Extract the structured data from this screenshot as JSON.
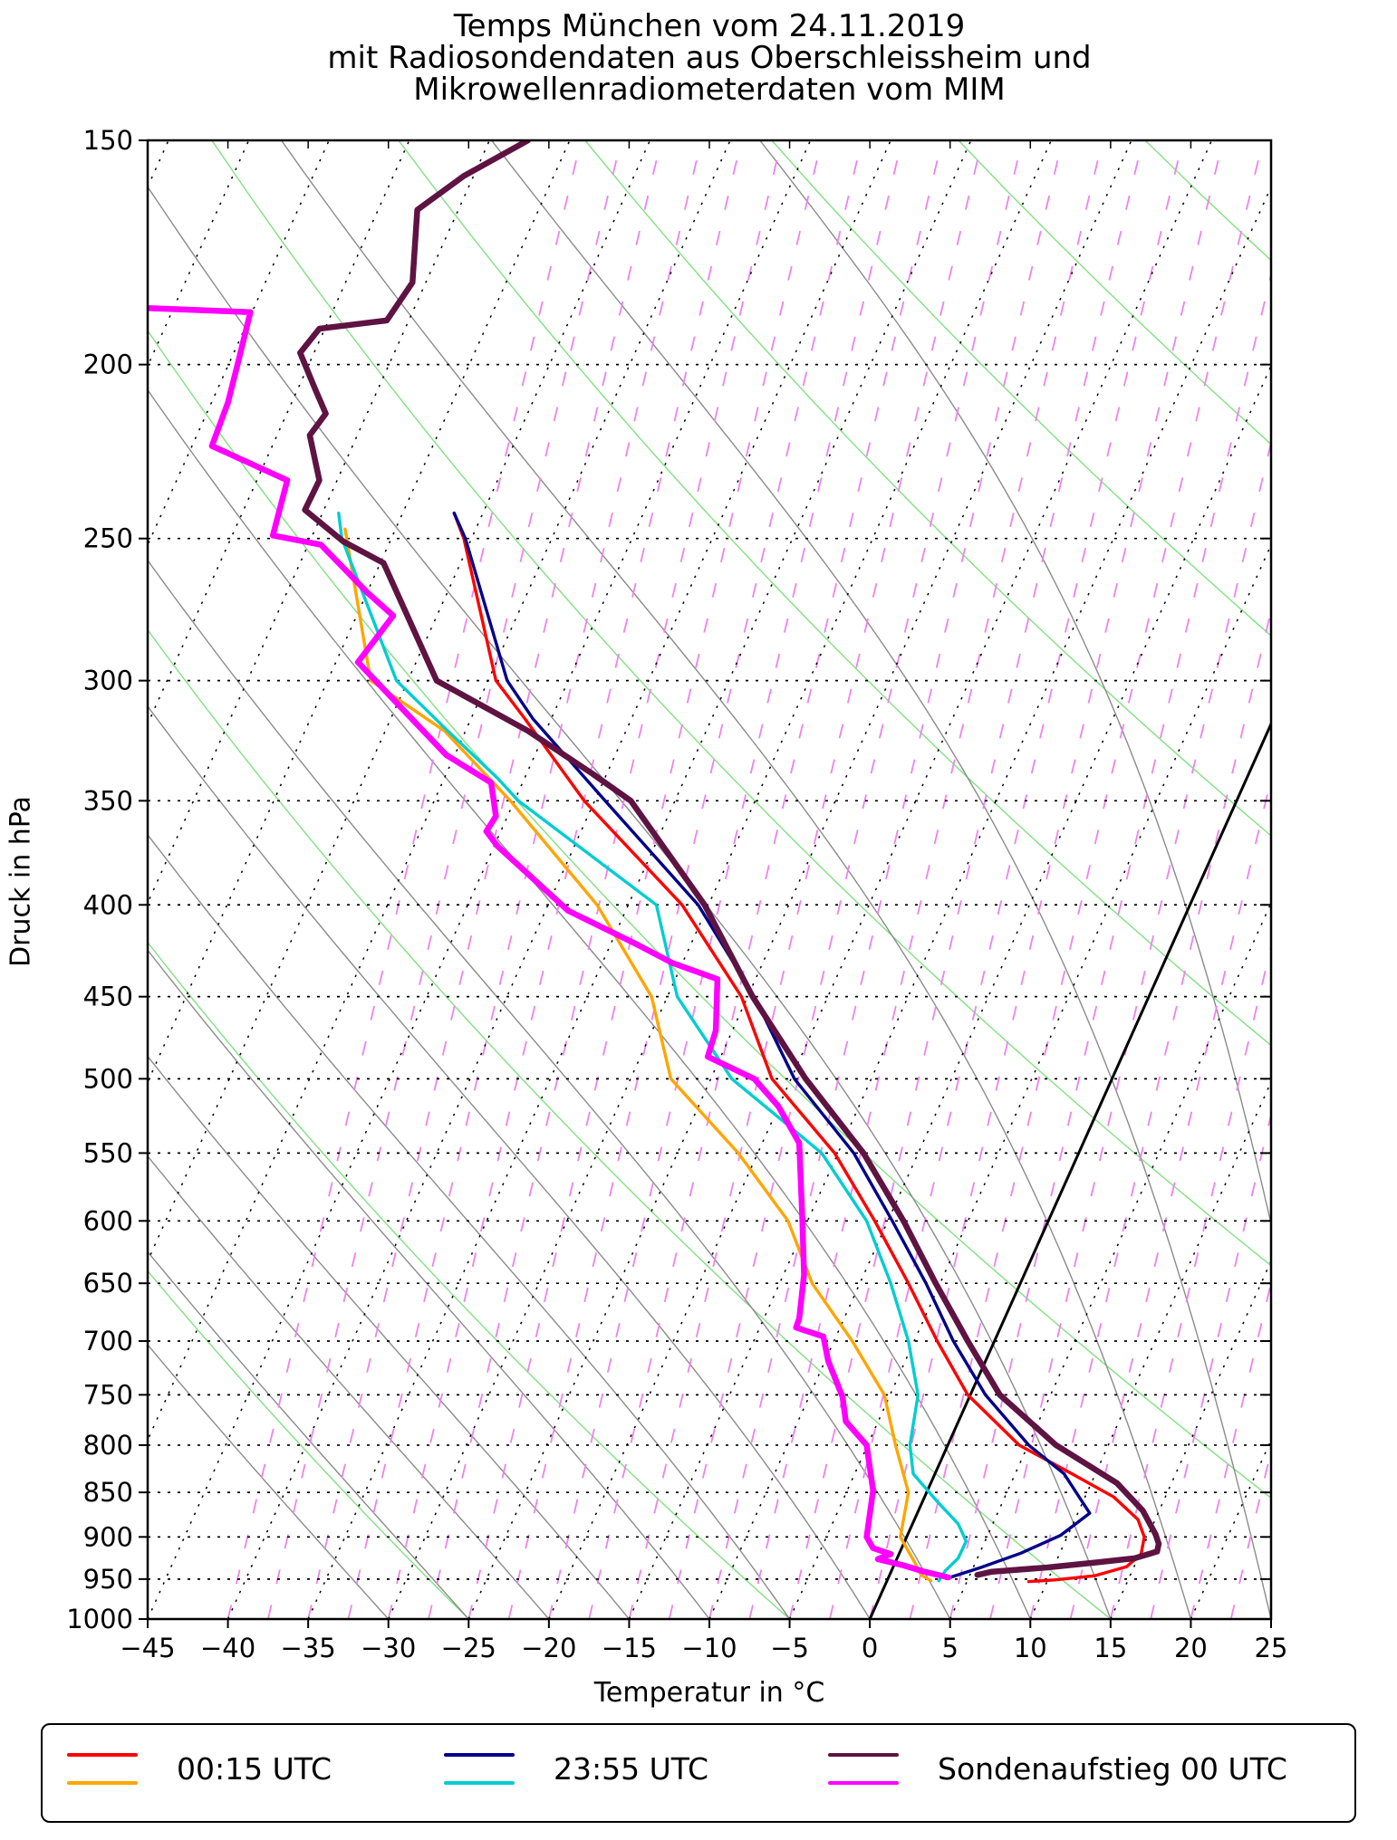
{
  "title": {
    "line1": "Temps München vom 24.11.2019",
    "line2": "mit Radiosondendaten aus Oberschleissheim und",
    "line3": "Mikrowellenradiometerdaten vom MIM"
  },
  "axes": {
    "x_label": "Temperatur in °C",
    "y_label": "Druck in hPa"
  },
  "legend": {
    "entries": [
      {
        "label": "00:15 UTC",
        "line_colors": [
          "#fe0000",
          "#ffa500"
        ]
      },
      {
        "label": "23:55 UTC",
        "line_colors": [
          "#00008b",
          "#00cdd0"
        ]
      },
      {
        "label": "Sondenaufstieg 00 UTC",
        "line_colors": [
          "#5e1342",
          "#ff00ff"
        ]
      }
    ]
  },
  "chart_data": {
    "type": "line",
    "projection": "skew-t-log-p",
    "note": "Skew-T log-p Diagramm. Series-Punkte sind [Druck hPa, Position auf der unteren Temperaturachse in °C] (schief projizierte Koordinaten). Isothermen sind um skew_shift °C über die Diagrammhöhe geneigt.",
    "title": "Temps München vom 24.11.2019 mit Radiosondendaten aus Oberschleissheim und Mikrowellenradiometerdaten vom MIM",
    "xlabel": "Temperatur in °C",
    "ylabel": "Druck in hPa",
    "x_range": [
      -45,
      25
    ],
    "p_range": [
      150,
      1000
    ],
    "x_ticks": [
      -45,
      -40,
      -35,
      -30,
      -25,
      -20,
      -15,
      -10,
      -5,
      0,
      5,
      10,
      15,
      20,
      25
    ],
    "y_ticks": [
      150,
      200,
      250,
      300,
      350,
      400,
      450,
      500,
      550,
      600,
      650,
      700,
      750,
      800,
      850,
      900,
      950,
      1000
    ],
    "y_scale": "log",
    "skew_shift": 41.3,
    "background": {
      "isobars": {
        "min": 200,
        "max": 950,
        "step": 50,
        "color": "#000000",
        "style": "dotted"
      },
      "isotherms": {
        "min": -90,
        "max": 25,
        "step": 5,
        "color": "#000000",
        "style": "dotted"
      },
      "dry_adiabats": {
        "theta_c": [
          -45,
          -25,
          -5,
          15,
          35,
          55,
          75,
          95,
          115,
          135,
          155,
          175
        ],
        "color": "#82e082"
      },
      "moist_adiabats": {
        "theta_w_c": [
          -30,
          -25,
          -20,
          -15,
          -10,
          -5,
          0,
          5,
          10,
          15,
          20,
          25,
          30
        ],
        "color": "#8b8b8b"
      },
      "mixing_lines": {
        "min": -40,
        "max": 30,
        "step": 2.5,
        "shift": 22,
        "color": "#ee82ee",
        "style": "dashed"
      },
      "zero_isotherm": {
        "t": 0,
        "color": "#000000",
        "width": 3
      }
    },
    "series": [
      {
        "id": "red",
        "legend": "00:15 UTC",
        "role": "temperature",
        "color": "#fe0000",
        "width": 3.4,
        "points": [
          [
            242,
            -25.9
          ],
          [
            250,
            -25.3
          ],
          [
            300,
            -23.3
          ],
          [
            315,
            -21.5
          ],
          [
            350,
            -17.8
          ],
          [
            400,
            -11.7
          ],
          [
            450,
            -8.0
          ],
          [
            500,
            -6.1
          ],
          [
            550,
            -2.2
          ],
          [
            600,
            0.3
          ],
          [
            650,
            2.4
          ],
          [
            700,
            4.2
          ],
          [
            750,
            6.1
          ],
          [
            800,
            9.3
          ],
          [
            830,
            12.6
          ],
          [
            855,
            15.2
          ],
          [
            880,
            16.7
          ],
          [
            900,
            17.1
          ],
          [
            920,
            16.9
          ],
          [
            935,
            16.0
          ],
          [
            946,
            14.0
          ],
          [
            951,
            11.5
          ],
          [
            953,
            9.9
          ]
        ]
      },
      {
        "id": "orange",
        "legend": "00:15 UTC",
        "role": "dewpoint",
        "color": "#ffa500",
        "width": 3.4,
        "points": [
          [
            247,
            -32.7
          ],
          [
            250,
            -32.6
          ],
          [
            300,
            -31.1
          ],
          [
            320,
            -26.5
          ],
          [
            350,
            -22.4
          ],
          [
            400,
            -17.0
          ],
          [
            450,
            -13.6
          ],
          [
            500,
            -12.4
          ],
          [
            550,
            -8.2
          ],
          [
            600,
            -5.1
          ],
          [
            650,
            -3.6
          ],
          [
            700,
            -1.1
          ],
          [
            750,
            0.9
          ],
          [
            800,
            1.6
          ],
          [
            850,
            2.4
          ],
          [
            900,
            1.9
          ],
          [
            930,
            2.8
          ],
          [
            945,
            3.2
          ],
          [
            952,
            3.8
          ]
        ]
      },
      {
        "id": "blue",
        "legend": "23:55 UTC",
        "role": "temperature",
        "color": "#00008b",
        "width": 3.4,
        "points": [
          [
            242,
            -25.9
          ],
          [
            250,
            -25.2
          ],
          [
            300,
            -22.6
          ],
          [
            315,
            -21.0
          ],
          [
            350,
            -16.5
          ],
          [
            400,
            -10.7
          ],
          [
            450,
            -7.2
          ],
          [
            500,
            -4.7
          ],
          [
            550,
            -1.0
          ],
          [
            600,
            1.4
          ],
          [
            650,
            3.5
          ],
          [
            700,
            5.2
          ],
          [
            750,
            7.2
          ],
          [
            800,
            9.9
          ],
          [
            830,
            12.1
          ],
          [
            873,
            13.7
          ],
          [
            898,
            11.9
          ],
          [
            919,
            9.4
          ],
          [
            936,
            6.9
          ],
          [
            948,
            5.0
          ]
        ]
      },
      {
        "id": "cyan",
        "legend": "23:55 UTC",
        "role": "dewpoint",
        "color": "#00cdd0",
        "width": 3.4,
        "points": [
          [
            242,
            -33.1
          ],
          [
            250,
            -32.9
          ],
          [
            300,
            -29.5
          ],
          [
            320,
            -26.3
          ],
          [
            340,
            -23.2
          ],
          [
            350,
            -21.9
          ],
          [
            400,
            -13.3
          ],
          [
            450,
            -12.0
          ],
          [
            500,
            -8.6
          ],
          [
            550,
            -3.0
          ],
          [
            600,
            -0.2
          ],
          [
            650,
            1.3
          ],
          [
            700,
            2.4
          ],
          [
            750,
            3.0
          ],
          [
            800,
            2.5
          ],
          [
            830,
            2.7
          ],
          [
            860,
            4.2
          ],
          [
            885,
            5.5
          ],
          [
            905,
            6.0
          ],
          [
            925,
            5.5
          ],
          [
            940,
            4.7
          ],
          [
            952,
            4.3
          ]
        ]
      },
      {
        "id": "sonde-temp",
        "legend": "Sondenaufstieg 00 UTC",
        "role": "temperature",
        "color": "#5e1342",
        "width": 6.5,
        "points": [
          [
            150,
            -21.3
          ],
          [
            157,
            -25.3
          ],
          [
            164,
            -28.2
          ],
          [
            180,
            -28.5
          ],
          [
            189,
            -30.1
          ],
          [
            191,
            -34.3
          ],
          [
            197,
            -35.5
          ],
          [
            206,
            -34.6
          ],
          [
            213,
            -33.9
          ],
          [
            219,
            -34.9
          ],
          [
            232,
            -34.3
          ],
          [
            241,
            -35.2
          ],
          [
            251,
            -32.8
          ],
          [
            258,
            -30.3
          ],
          [
            300,
            -27.0
          ],
          [
            320,
            -21.3
          ],
          [
            338,
            -17.3
          ],
          [
            350,
            -14.9
          ],
          [
            400,
            -10.3
          ],
          [
            450,
            -7.3
          ],
          [
            500,
            -4.0
          ],
          [
            550,
            -0.4
          ],
          [
            600,
            2.1
          ],
          [
            650,
            4.1
          ],
          [
            700,
            6.1
          ],
          [
            750,
            8.1
          ],
          [
            800,
            11.6
          ],
          [
            840,
            15.4
          ],
          [
            870,
            17.0
          ],
          [
            897,
            17.8
          ],
          [
            908,
            18.0
          ],
          [
            917,
            17.9
          ],
          [
            925,
            16.5
          ],
          [
            930,
            14.1
          ],
          [
            936,
            11.0
          ],
          [
            941,
            7.6
          ],
          [
            945,
            6.7
          ]
        ]
      },
      {
        "id": "sonde-dew",
        "legend": "Sondenaufstieg 00 UTC",
        "role": "dewpoint",
        "color": "#ff00ff",
        "width": 6.5,
        "points": [
          [
            186,
            -45.0
          ],
          [
            187,
            -38.6
          ],
          [
            200,
            -39.4
          ],
          [
            210,
            -40.0
          ],
          [
            222,
            -41.0
          ],
          [
            232,
            -36.3
          ],
          [
            249,
            -37.2
          ],
          [
            252,
            -34.2
          ],
          [
            268,
            -31.3
          ],
          [
            276,
            -29.7
          ],
          [
            293,
            -31.9
          ],
          [
            330,
            -26.4
          ],
          [
            342,
            -23.6
          ],
          [
            357,
            -23.3
          ],
          [
            364,
            -23.9
          ],
          [
            371,
            -23.2
          ],
          [
            403,
            -18.8
          ],
          [
            420,
            -14.7
          ],
          [
            431,
            -12.3
          ],
          [
            440,
            -9.5
          ],
          [
            470,
            -9.6
          ],
          [
            486,
            -10.1
          ],
          [
            500,
            -7.2
          ],
          [
            518,
            -5.7
          ],
          [
            543,
            -4.4
          ],
          [
            600,
            -4.2
          ],
          [
            643,
            -4.1
          ],
          [
            680,
            -4.4
          ],
          [
            688,
            -4.6
          ],
          [
            696,
            -2.9
          ],
          [
            718,
            -2.6
          ],
          [
            752,
            -1.7
          ],
          [
            776,
            -1.5
          ],
          [
            800,
            -0.2
          ],
          [
            848,
            0.2
          ],
          [
            900,
            -0.2
          ],
          [
            913,
            0.2
          ],
          [
            920,
            1.3
          ],
          [
            926,
            0.5
          ],
          [
            933,
            2.0
          ],
          [
            941,
            3.4
          ],
          [
            948,
            4.9
          ]
        ]
      }
    ]
  }
}
